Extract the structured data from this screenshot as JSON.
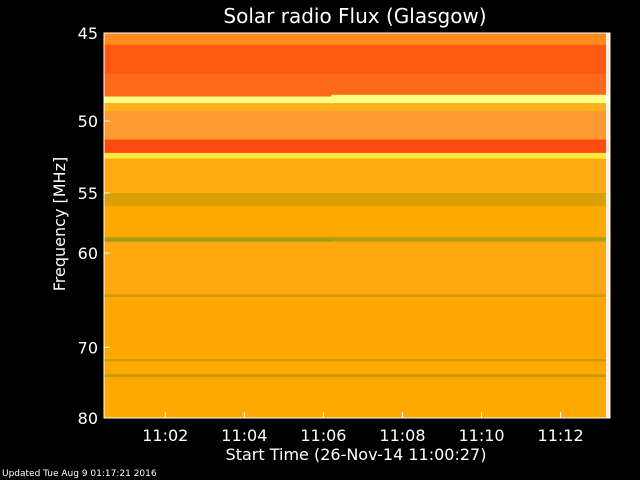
{
  "chart_data": {
    "type": "heatmap",
    "title": "Solar radio Flux (Glasgow)",
    "xlabel": "Start Time (26-Nov-14 11:00:27)",
    "ylabel": "Frequency [MHz]",
    "x_start": "11:00:27",
    "x_end": "11:13:15",
    "x_ticks": [
      "11:02",
      "11:04",
      "11:06",
      "11:08",
      "11:10",
      "11:12"
    ],
    "x_tick_minutes": [
      1.55,
      3.55,
      5.55,
      7.55,
      9.55,
      11.55
    ],
    "ylim": [
      45,
      80
    ],
    "y_ticks": [
      45,
      50,
      55,
      60,
      70,
      80
    ],
    "y_scale": "reciprocal",
    "colormap": [
      "#ff8c00",
      "#ffa500",
      "#ffd700",
      "#ffff80",
      "#ff3b00",
      "#9aa000"
    ],
    "bands": [
      {
        "f0": 45.0,
        "f1": 45.6,
        "color": "#ff8c1a"
      },
      {
        "f0": 45.6,
        "f1": 47.2,
        "color": "#ff5a10"
      },
      {
        "f0": 47.2,
        "f1": 48.5,
        "color": "#ff6a18"
      },
      {
        "f0": 48.5,
        "f1": 48.9,
        "color": "#ffff88"
      },
      {
        "f0": 48.9,
        "f1": 49.4,
        "color": "#ffb020"
      },
      {
        "f0": 49.4,
        "f1": 51.2,
        "color": "#ff9a30"
      },
      {
        "f0": 51.2,
        "f1": 52.1,
        "color": "#ff4a10"
      },
      {
        "f0": 52.1,
        "f1": 52.5,
        "color": "#ffe840"
      },
      {
        "f0": 52.5,
        "f1": 55.0,
        "color": "#ffaa10"
      },
      {
        "f0": 55.0,
        "f1": 56.0,
        "color": "#d8a000"
      },
      {
        "f0": 56.0,
        "f1": 58.6,
        "color": "#ffa800"
      },
      {
        "f0": 58.6,
        "f1": 59.0,
        "color": "#b0a010"
      },
      {
        "f0": 59.0,
        "f1": 64.0,
        "color": "#ffa810"
      },
      {
        "f0": 64.0,
        "f1": 64.3,
        "color": "#d89a00"
      },
      {
        "f0": 64.3,
        "f1": 71.5,
        "color": "#ffa600"
      },
      {
        "f0": 71.5,
        "f1": 71.8,
        "color": "#d09a00"
      },
      {
        "f0": 71.8,
        "f1": 73.5,
        "color": "#ffaa00"
      },
      {
        "f0": 73.5,
        "f1": 73.9,
        "color": "#c89a00"
      },
      {
        "f0": 73.9,
        "f1": 80.0,
        "color": "#ffa800"
      }
    ]
  },
  "footer": "Updated Tue Aug  9 01:17:21 2016"
}
